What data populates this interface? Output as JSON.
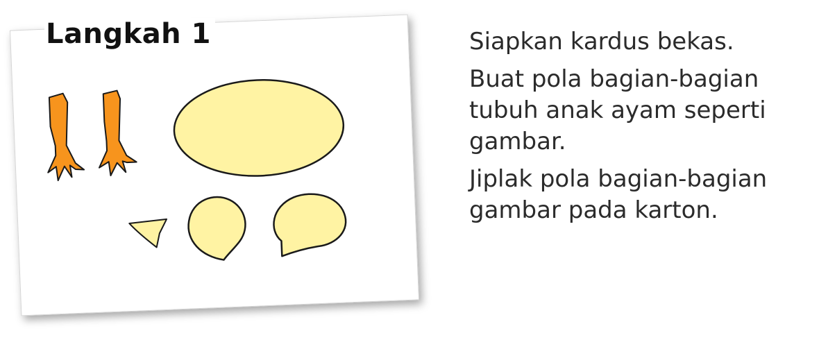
{
  "step": {
    "title": "Langkah 1"
  },
  "instructions": [
    "Siapkan kardus bekas.",
    "Buat pola bagian-bagian tubuh anak ayam seperti gambar.",
    "Jiplak pola bagian-bagian gambar pada karton."
  ],
  "colors": {
    "leg_fill": "#f7941d",
    "shape_fill": "#fff3a3",
    "outline": "#1a1a1a"
  },
  "icons": [
    "chick-leg-icon",
    "chick-body-oval-icon",
    "chick-beak-icon",
    "chick-head-icon",
    "chick-wing-icon"
  ]
}
